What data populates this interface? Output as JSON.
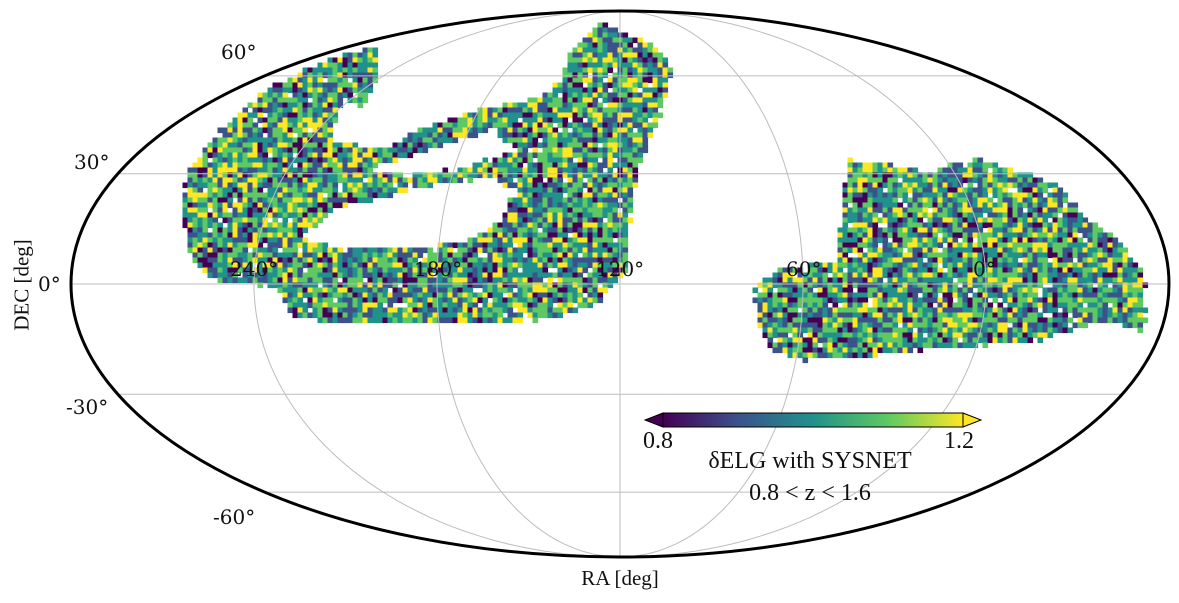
{
  "map": {
    "projection": "mollweide",
    "background": "#ffffff",
    "outline_color": "#000000",
    "grid_color": "#bdbdbd",
    "grid": true,
    "ra_gridlines_deg": [
      300,
      240,
      180,
      120,
      60,
      0,
      -60
    ],
    "dec_gridlines_deg": [
      -60,
      -30,
      0,
      30,
      60
    ],
    "ra_tick_labels": [
      "240°",
      "180°",
      "120°",
      "60°",
      "0°"
    ],
    "dec_tick_labels": [
      "60°",
      "30°",
      "0°",
      "-30°",
      "-60°"
    ],
    "xlabel": "RA [deg]",
    "ylabel": "DEC [deg]",
    "colorbar": {
      "colormap": "viridis",
      "min_label": "0.8",
      "max_label": "1.2",
      "extend": "both",
      "title_line1": "δELG with SYSNET",
      "title_line2": "0.8 < z < 1.6",
      "stops": [
        "#440154",
        "#3b528b",
        "#21918c",
        "#5ec962",
        "#fde725"
      ]
    }
  }
}
